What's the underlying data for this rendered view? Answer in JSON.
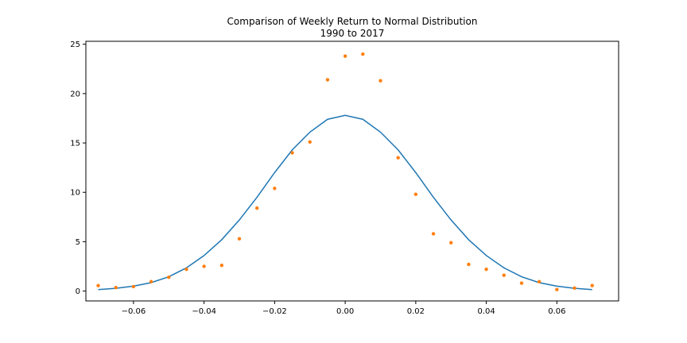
{
  "chart_data": {
    "type": "line",
    "title": "Comparison of Weekly Return to Normal Distribution",
    "subtitle": "1990 to 2017",
    "xlabel": "",
    "ylabel": "",
    "xlim": [
      -0.0735,
      0.0775
    ],
    "ylim": [
      -1.0,
      25.3
    ],
    "grid": false,
    "x_ticks": [
      -0.06,
      -0.04,
      -0.02,
      0.0,
      0.02,
      0.04,
      0.06
    ],
    "x_tick_labels": [
      "−0.06",
      "−0.04",
      "−0.02",
      "0.00",
      "0.02",
      "0.04",
      "0.06"
    ],
    "y_ticks": [
      0,
      5,
      10,
      15,
      20,
      25
    ],
    "y_tick_labels": [
      "0",
      "5",
      "10",
      "15",
      "20",
      "25"
    ],
    "series": [
      {
        "kind": "line",
        "color": "#1f77b4",
        "x": [
          -0.07,
          -0.065,
          -0.06,
          -0.055,
          -0.05,
          -0.045,
          -0.04,
          -0.035,
          -0.03,
          -0.025,
          -0.02,
          -0.015,
          -0.01,
          -0.005,
          0.0,
          0.005,
          0.01,
          0.015,
          0.02,
          0.025,
          0.03,
          0.035,
          0.04,
          0.045,
          0.05,
          0.055,
          0.06,
          0.065,
          0.07
        ],
        "y": [
          0.15,
          0.28,
          0.5,
          0.85,
          1.45,
          2.35,
          3.6,
          5.2,
          7.2,
          9.5,
          12.0,
          14.3,
          16.1,
          17.4,
          17.8,
          17.4,
          16.1,
          14.3,
          12.0,
          9.5,
          7.2,
          5.2,
          3.6,
          2.35,
          1.45,
          0.85,
          0.5,
          0.28,
          0.15
        ]
      },
      {
        "kind": "scatter",
        "color": "#ff7f0e",
        "x": [
          -0.07,
          -0.065,
          -0.06,
          -0.055,
          -0.05,
          -0.045,
          -0.04,
          -0.035,
          -0.03,
          -0.025,
          -0.02,
          -0.015,
          -0.01,
          -0.005,
          0.0,
          0.005,
          0.01,
          0.015,
          0.02,
          0.025,
          0.03,
          0.035,
          0.04,
          0.045,
          0.05,
          0.055,
          0.06,
          0.065,
          0.07
        ],
        "y": [
          0.55,
          0.35,
          0.45,
          0.95,
          1.4,
          2.2,
          2.5,
          2.6,
          5.3,
          8.4,
          10.4,
          14.0,
          15.1,
          21.4,
          23.8,
          24.0,
          21.3,
          13.5,
          9.8,
          5.8,
          4.9,
          2.7,
          2.2,
          1.6,
          0.8,
          0.95,
          0.15,
          0.3,
          0.55
        ]
      }
    ]
  }
}
